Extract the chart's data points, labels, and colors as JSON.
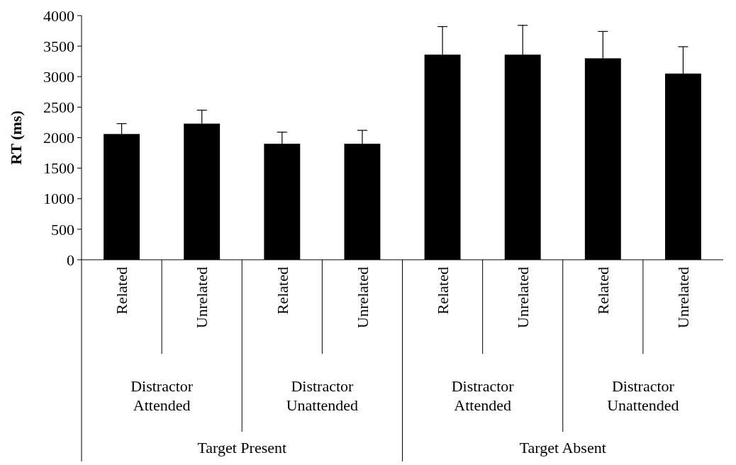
{
  "chart_data": {
    "type": "bar",
    "ylabel": "RT (ms)",
    "categories": [
      "Related",
      "Unrelated",
      "Related",
      "Unrelated",
      "Related",
      "Unrelated",
      "Related",
      "Unrelated"
    ],
    "values": [
      2060,
      2230,
      1900,
      1900,
      3360,
      3360,
      3300,
      3050
    ],
    "errors": [
      [
        2060,
        2230
      ],
      [
        2230,
        2450
      ],
      [
        1900,
        2090
      ],
      [
        1900,
        2120
      ],
      [
        3360,
        3820
      ],
      [
        3360,
        3840
      ],
      [
        3300,
        3740
      ],
      [
        3050,
        3490
      ]
    ],
    "color": "#000000",
    "ylim": [
      0,
      4000
    ],
    "yticks": [
      0,
      500,
      1000,
      1500,
      2000,
      2500,
      3000,
      3500,
      4000
    ],
    "annotations": [
      "Distractor Attended",
      "Distractor Unattended",
      "Distractor Attended",
      "Distractor Unattended",
      "Target Present",
      "Target Absent"
    ]
  }
}
